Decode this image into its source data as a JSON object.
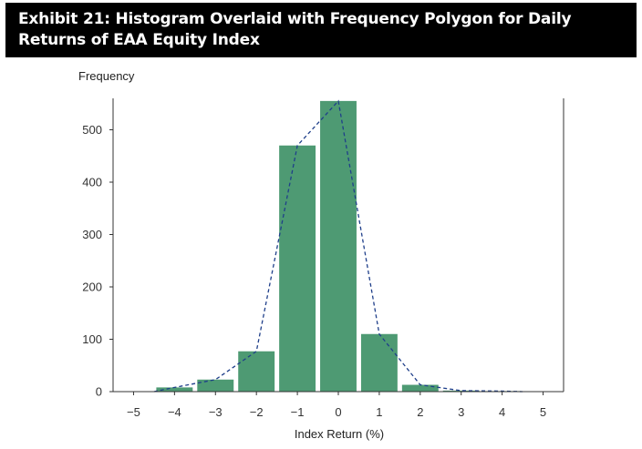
{
  "chart_data": {
    "type": "bar",
    "title": "Exhibit 21: Histogram Overlaid with Frequency Polygon for Daily Returns of EAA Equity Index",
    "xlabel": "Index Return (%)",
    "ylabel": "Frequency",
    "xlim": [
      -5.5,
      5.5
    ],
    "ylim": [
      0,
      560
    ],
    "xticks": [
      -5,
      -4,
      -3,
      -2,
      -1,
      0,
      1,
      2,
      3,
      4,
      5
    ],
    "yticks": [
      0,
      100,
      200,
      300,
      400,
      500
    ],
    "grid": false,
    "legend": "none",
    "bars": [
      {
        "x0": -4.5,
        "x1": -3.5,
        "value": 8
      },
      {
        "x0": -3.5,
        "x1": -2.5,
        "value": 23
      },
      {
        "x0": -2.5,
        "x1": -1.5,
        "value": 77
      },
      {
        "x0": -1.5,
        "x1": -0.5,
        "value": 470
      },
      {
        "x0": -0.5,
        "x1": 0.5,
        "value": 555
      },
      {
        "x0": 0.5,
        "x1": 1.5,
        "value": 110
      },
      {
        "x0": 1.5,
        "x1": 2.5,
        "value": 13
      },
      {
        "x0": 2.5,
        "x1": 3.5,
        "value": 2
      },
      {
        "x0": 3.5,
        "x1": 4.5,
        "value": 1
      }
    ],
    "polygon": {
      "x": [
        -4.5,
        -4,
        -3,
        -2,
        -1,
        0,
        1,
        2,
        3,
        4,
        4.5
      ],
      "y": [
        0,
        8,
        23,
        77,
        470,
        555,
        110,
        13,
        2,
        1,
        0
      ]
    },
    "colors": {
      "bar": "#4e9a73",
      "polygon": "#1f3f8a",
      "axis": "#333333"
    }
  }
}
